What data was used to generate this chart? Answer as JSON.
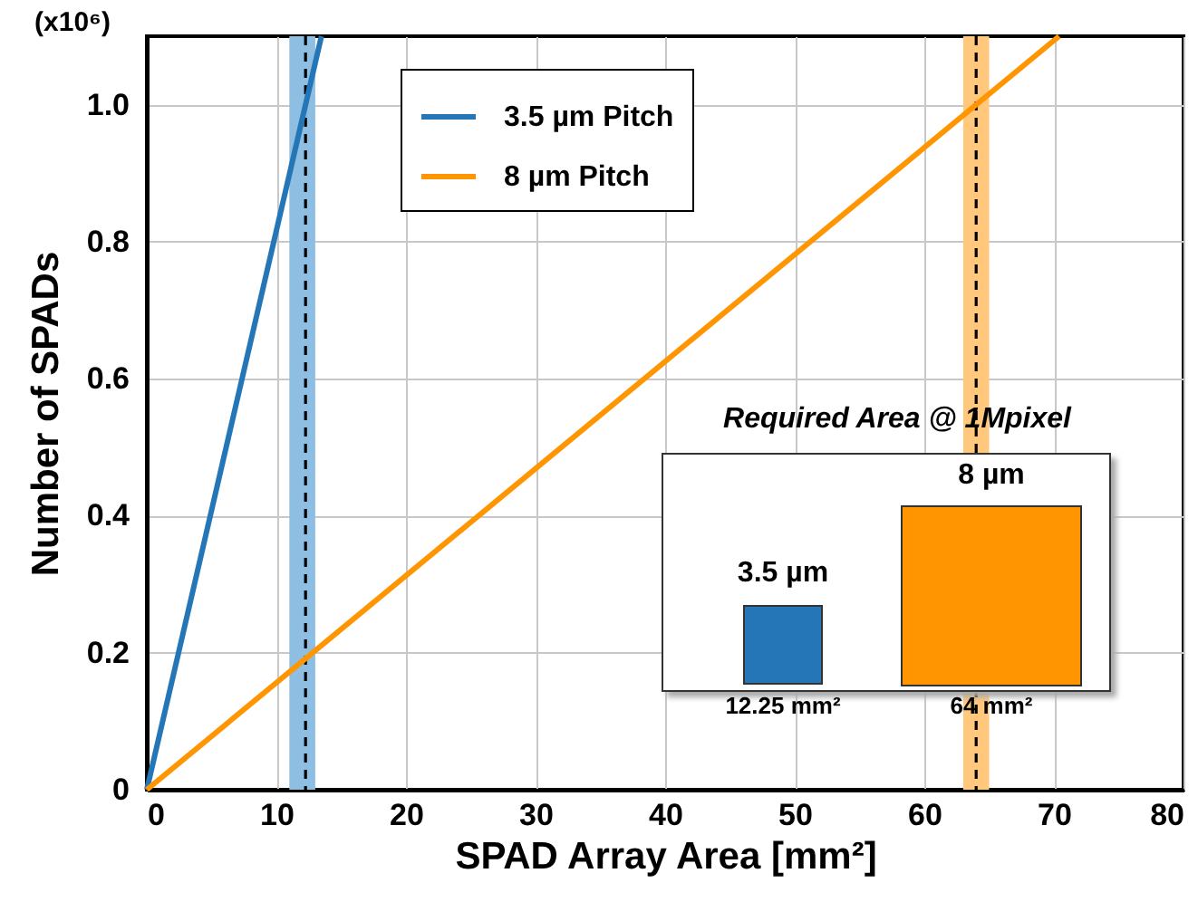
{
  "chart_data": {
    "type": "line",
    "xlabel": "SPAD Array Area [mm²]",
    "ylabel": "Number of SPADs",
    "xlim": [
      0,
      80
    ],
    "xticks": [
      0,
      10,
      20,
      30,
      40,
      50,
      60,
      70,
      80
    ],
    "ylim": [
      0,
      1.1
    ],
    "yticks": [
      0,
      0.2,
      0.4,
      0.6,
      0.8,
      {
        "value": 1,
        "label": "1.0"
      }
    ],
    "grid": true,
    "legend": "top",
    "line_style": "solid",
    "marker": "none",
    "series": [
      {
        "name": "3.5 µm Pitch",
        "color": "#2576b7",
        "x": [
          0,
          13.475
        ],
        "values": [
          0,
          1.1
        ]
      },
      {
        "name": "8 µm Pitch",
        "color": "#ff9500",
        "x": [
          0,
          70.4
        ],
        "values": [
          0,
          1.1
        ]
      }
    ],
    "bands": [
      {
        "axis": "x",
        "from": 11,
        "to": 13,
        "color": "#8ebfe2"
      },
      {
        "axis": "x",
        "from": 63,
        "to": 65,
        "color": "#ffc87d"
      }
    ],
    "ref_lines": [
      {
        "axis": "x",
        "value": 12.25,
        "color": "#000000",
        "line_style": "dashed"
      },
      {
        "axis": "x",
        "value": 64,
        "color": "#000000",
        "line_style": "dashed"
      }
    ],
    "annotations": [
      "(x10⁶)",
      "Required Area @ 1Mpixel",
      "3.5 µm",
      "8 µm",
      "12.25 mm²",
      "64 mm²"
    ]
  }
}
